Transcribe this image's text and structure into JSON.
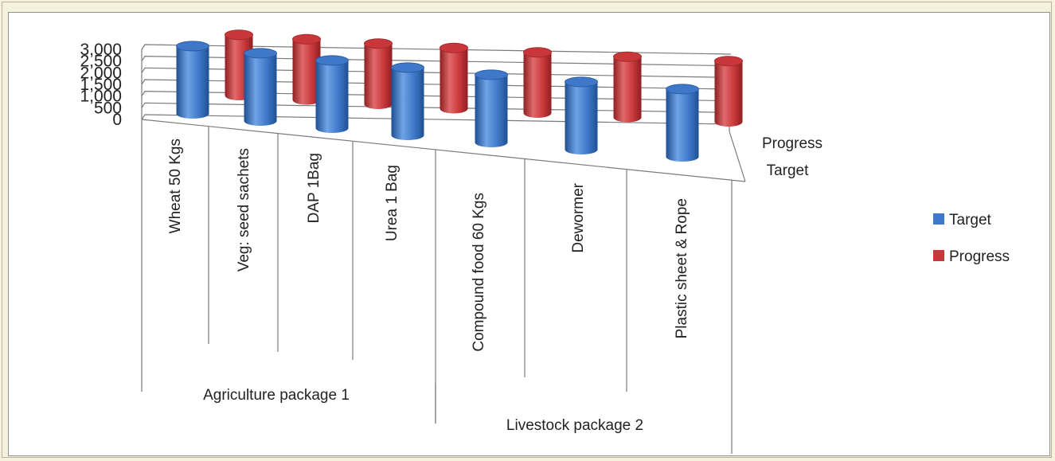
{
  "chart_data": {
    "type": "bar",
    "style": "3d-cylinder",
    "categories": [
      "Wheat 50 Kgs",
      "Veg: seed sachets",
      "DAP 1Bag",
      "Urea 1 Bag",
      "Compound food 60 Kgs",
      "Dewormer",
      "Plastic sheet & Rope"
    ],
    "groups": [
      {
        "label": "Agriculture package 1",
        "categories": [
          "Wheat 50 Kgs",
          "Veg: seed sachets",
          "DAP 1Bag",
          "Urea 1 Bag"
        ]
      },
      {
        "label": "Livestock package 2",
        "categories": [
          "Compound food 60 Kgs",
          "Dewormer",
          "Plastic sheet & Rope"
        ]
      }
    ],
    "series": [
      {
        "name": "Target",
        "color": "#3f78c8",
        "values": [
          2900,
          2900,
          2900,
          2900,
          2900,
          2900,
          2900
        ]
      },
      {
        "name": "Progress",
        "color": "#c9373a",
        "values": [
          2600,
          2600,
          2600,
          2600,
          2600,
          2600,
          2600
        ]
      }
    ],
    "depth_labels": [
      "Progress",
      "Target"
    ],
    "y_ticks": [
      "0",
      "500",
      "1,000",
      "1,500",
      "2,000",
      "2,500",
      "3,000"
    ],
    "ylim": [
      0,
      3000
    ],
    "legend": {
      "position": "right",
      "entries": [
        "Target",
        "Progress"
      ]
    },
    "grid": true
  }
}
